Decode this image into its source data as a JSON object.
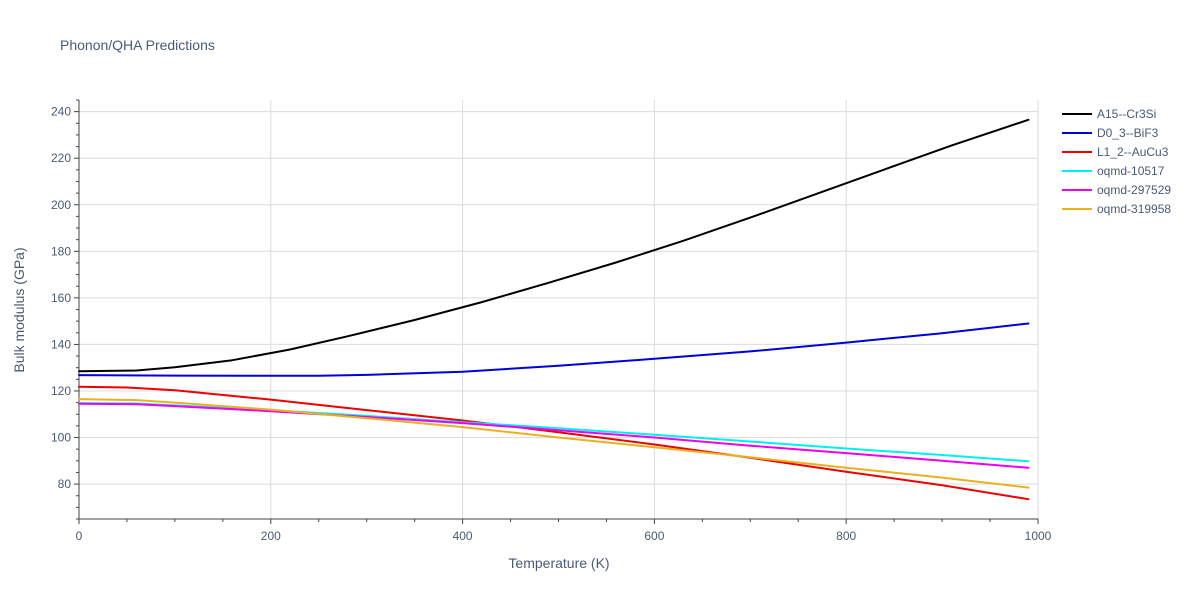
{
  "chart_data": {
    "type": "line",
    "title": "Phonon/QHA Predictions",
    "xlabel": "Temperature (K)",
    "ylabel": "Bulk modulus (GPa)",
    "xlim": [
      0,
      1000
    ],
    "ylim": [
      65,
      245
    ],
    "xticks": [
      0,
      200,
      400,
      600,
      800,
      1000
    ],
    "yticks": [
      80,
      100,
      120,
      140,
      160,
      180,
      200,
      220,
      240
    ],
    "grid": true,
    "legend_position": "top-right",
    "series": [
      {
        "name": "A15--Cr3Si",
        "color": "#000000",
        "x": [
          0,
          60,
          100,
          160,
          220,
          280,
          350,
          420,
          490,
          560,
          630,
          700,
          770,
          840,
          910,
          990
        ],
        "y": [
          128.5,
          128.8,
          130.2,
          133.2,
          137.8,
          143.5,
          150.5,
          158.2,
          166.5,
          175.2,
          184.5,
          194.5,
          204.8,
          215.2,
          225.5,
          236.5
        ]
      },
      {
        "name": "D0_3--BiF3",
        "color": "#0000dd",
        "x": [
          0,
          100,
          200,
          250,
          300,
          400,
          500,
          600,
          700,
          800,
          900,
          990
        ],
        "y": [
          126.8,
          126.6,
          126.5,
          126.5,
          126.9,
          128.3,
          130.8,
          133.8,
          137.0,
          140.8,
          144.8,
          149.0
        ]
      },
      {
        "name": "L1_2--AuCu3",
        "color": "#ee0000",
        "x": [
          0,
          50,
          100,
          200,
          300,
          400,
          500,
          600,
          700,
          800,
          900,
          990
        ],
        "y": [
          121.8,
          121.5,
          120.3,
          116.3,
          111.8,
          107.3,
          102.3,
          97.0,
          91.3,
          85.3,
          79.5,
          73.5
        ]
      },
      {
        "name": "oqmd-10517",
        "color": "#00f0f0",
        "x": [
          0,
          60,
          100,
          200,
          300,
          400,
          500,
          600,
          700,
          800,
          900,
          990
        ],
        "y": [
          114.8,
          114.6,
          113.8,
          111.8,
          109.3,
          106.6,
          104.0,
          101.2,
          98.3,
          95.3,
          92.5,
          89.8
        ]
      },
      {
        "name": "oqmd-297529",
        "color": "#ee00ee",
        "x": [
          0,
          60,
          100,
          200,
          300,
          400,
          500,
          600,
          700,
          800,
          900,
          990
        ],
        "y": [
          114.5,
          114.3,
          113.5,
          111.3,
          108.8,
          106.2,
          103.1,
          100.0,
          96.5,
          93.3,
          90.0,
          87.0
        ]
      },
      {
        "name": "oqmd-319958",
        "color": "#ecb01f",
        "x": [
          0,
          60,
          100,
          200,
          300,
          400,
          500,
          600,
          700,
          800,
          900,
          990
        ],
        "y": [
          116.5,
          116.1,
          115.0,
          112.0,
          108.3,
          104.5,
          100.0,
          95.8,
          91.5,
          87.0,
          82.8,
          78.5
        ]
      }
    ]
  }
}
